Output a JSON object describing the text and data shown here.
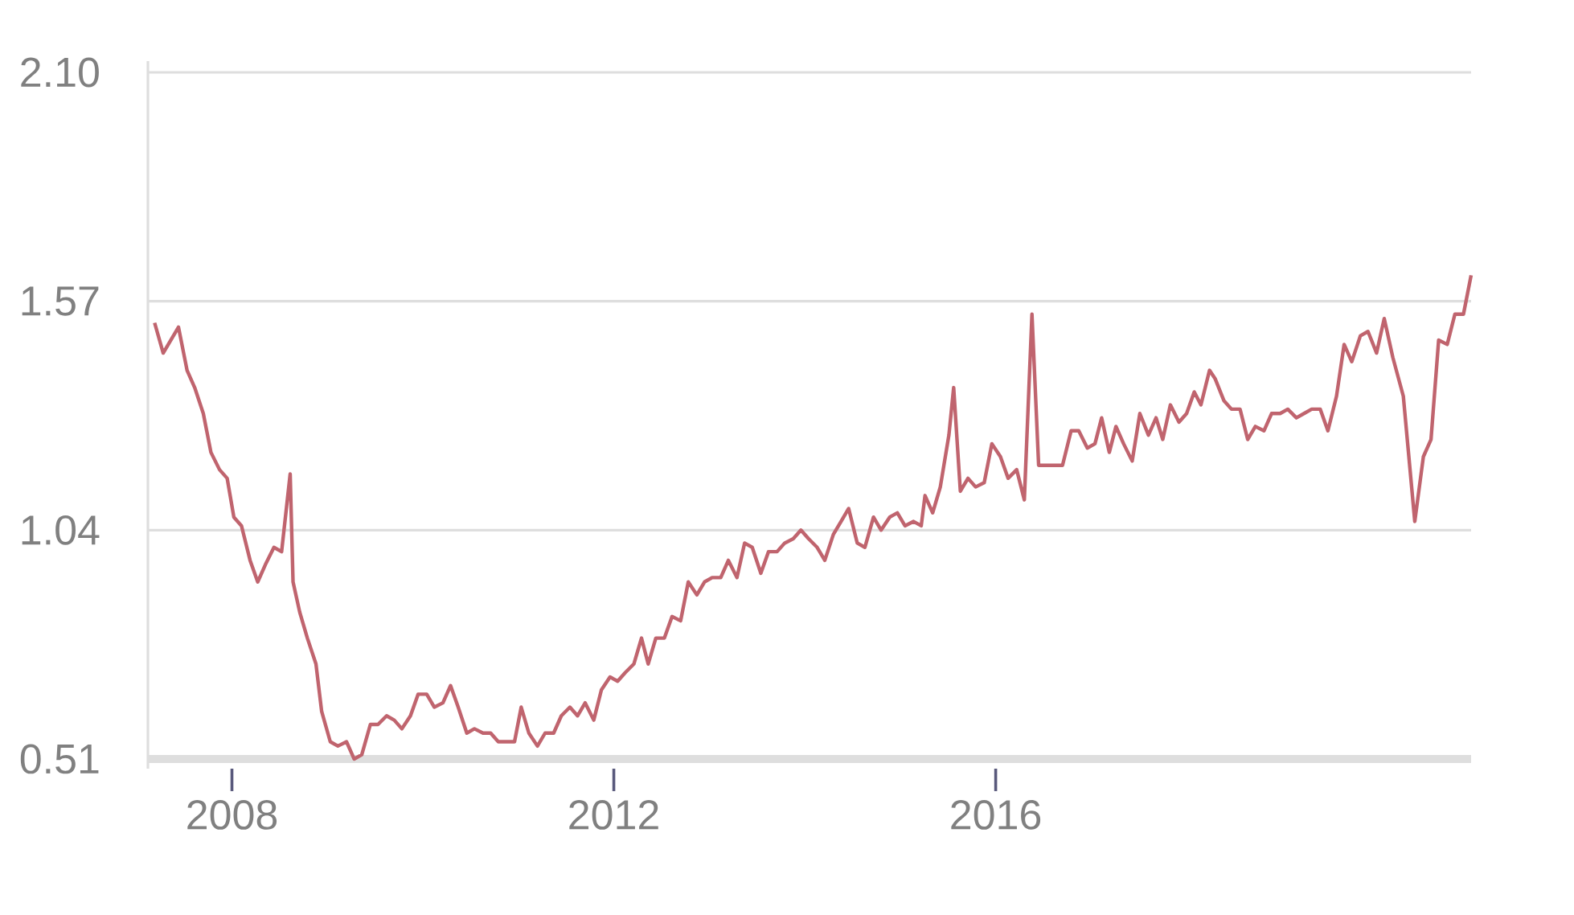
{
  "chart_data": {
    "type": "line",
    "xlim": [
      2007.12,
      2020.98
    ],
    "xticks": [
      2008,
      2012,
      2016
    ],
    "ylim": [
      0.51,
      2.1
    ],
    "yticks": [
      0.51,
      1.04,
      1.57,
      {
        "value": 2.1,
        "label": "2.10"
      }
    ],
    "grid": "y",
    "series": [
      {
        "color": "#c0646e",
        "x": [
          2007.19,
          2007.28,
          2007.44,
          2007.53,
          2007.61,
          2007.7,
          2007.78,
          2007.87,
          2007.95,
          2008.02,
          2008.1,
          2008.19,
          2008.27,
          2008.35,
          2008.44,
          2008.52,
          2008.61,
          2008.64,
          2008.71,
          2008.79,
          2008.88,
          2008.94,
          2009.03,
          2009.11,
          2009.2,
          2009.28,
          2009.36,
          2009.45,
          2009.53,
          2009.62,
          2009.7,
          2009.78,
          2009.87,
          2009.95,
          2010.04,
          2010.12,
          2010.21,
          2010.29,
          2010.37,
          2010.46,
          2010.54,
          2010.63,
          2010.71,
          2010.79,
          2010.88,
          2010.96,
          2011.03,
          2011.11,
          2011.2,
          2011.28,
          2011.37,
          2011.45,
          2011.54,
          2011.62,
          2011.7,
          2011.79,
          2011.87,
          2011.96,
          2012.04,
          2012.12,
          2012.21,
          2012.29,
          2012.36,
          2012.44,
          2012.53,
          2012.61,
          2012.7,
          2012.78,
          2012.87,
          2012.95,
          2013.03,
          2013.12,
          2013.2,
          2013.29,
          2013.37,
          2013.45,
          2013.54,
          2013.62,
          2013.71,
          2013.79,
          2013.88,
          2013.96,
          2014.04,
          2014.13,
          2014.21,
          2014.3,
          2014.38,
          2014.46,
          2014.55,
          2014.63,
          2014.72,
          2014.8,
          2014.89,
          2014.97,
          2015.05,
          2015.14,
          2015.22,
          2015.26,
          2015.34,
          2015.42,
          2015.51,
          2015.56,
          2015.63,
          2015.71,
          2015.79,
          2015.88,
          2015.96,
          2016.05,
          2016.13,
          2016.22,
          2016.3,
          2016.38,
          2016.45,
          2016.54,
          2016.62,
          2016.7,
          2016.79,
          2016.87,
          2016.96,
          2017.04,
          2017.11,
          2017.19,
          2017.26,
          2017.34,
          2017.43,
          2017.51,
          2017.6,
          2017.68,
          2017.75,
          2017.83,
          2017.92,
          2018.0,
          2018.08,
          2018.15,
          2018.24,
          2018.3,
          2018.39,
          2018.47,
          2018.56,
          2018.64,
          2018.72,
          2018.81,
          2018.89,
          2018.98,
          2019.06,
          2019.15,
          2019.23,
          2019.31,
          2019.4,
          2019.48,
          2019.57,
          2019.65,
          2019.73,
          2019.82,
          2019.9,
          2019.99,
          2020.07,
          2020.16,
          2020.27,
          2020.39,
          2020.48,
          2020.56,
          2020.64,
          2020.73,
          2020.81,
          2020.9,
          2020.98
        ],
        "values": [
          1.52,
          1.45,
          1.51,
          1.41,
          1.37,
          1.31,
          1.22,
          1.18,
          1.16,
          1.07,
          1.05,
          0.97,
          0.92,
          0.96,
          1.0,
          0.99,
          1.17,
          0.92,
          0.85,
          0.79,
          0.73,
          0.62,
          0.55,
          0.54,
          0.55,
          0.51,
          0.52,
          0.59,
          0.59,
          0.61,
          0.6,
          0.58,
          0.61,
          0.66,
          0.66,
          0.63,
          0.64,
          0.68,
          0.63,
          0.57,
          0.58,
          0.57,
          0.57,
          0.55,
          0.55,
          0.55,
          0.63,
          0.57,
          0.54,
          0.57,
          0.57,
          0.61,
          0.63,
          0.61,
          0.64,
          0.6,
          0.67,
          0.7,
          0.69,
          0.71,
          0.73,
          0.79,
          0.73,
          0.79,
          0.79,
          0.84,
          0.83,
          0.92,
          0.89,
          0.92,
          0.93,
          0.93,
          0.97,
          0.93,
          1.01,
          1.0,
          0.94,
          0.99,
          0.99,
          1.01,
          1.02,
          1.04,
          1.02,
          1.0,
          0.97,
          1.03,
          1.06,
          1.09,
          1.01,
          1.0,
          1.07,
          1.04,
          1.07,
          1.08,
          1.05,
          1.06,
          1.05,
          1.12,
          1.08,
          1.14,
          1.26,
          1.37,
          1.13,
          1.16,
          1.14,
          1.15,
          1.24,
          1.21,
          1.16,
          1.18,
          1.11,
          1.54,
          1.19,
          1.19,
          1.19,
          1.19,
          1.27,
          1.27,
          1.23,
          1.24,
          1.3,
          1.22,
          1.28,
          1.24,
          1.2,
          1.31,
          1.26,
          1.3,
          1.25,
          1.33,
          1.29,
          1.31,
          1.36,
          1.33,
          1.41,
          1.39,
          1.34,
          1.32,
          1.32,
          1.25,
          1.28,
          1.27,
          1.31,
          1.31,
          1.32,
          1.3,
          1.31,
          1.32,
          1.32,
          1.27,
          1.35,
          1.47,
          1.43,
          1.49,
          1.5,
          1.45,
          1.53,
          1.44,
          1.35,
          1.06,
          1.21,
          1.25,
          1.48,
          1.47,
          1.54,
          1.54,
          1.63
        ]
      }
    ]
  }
}
